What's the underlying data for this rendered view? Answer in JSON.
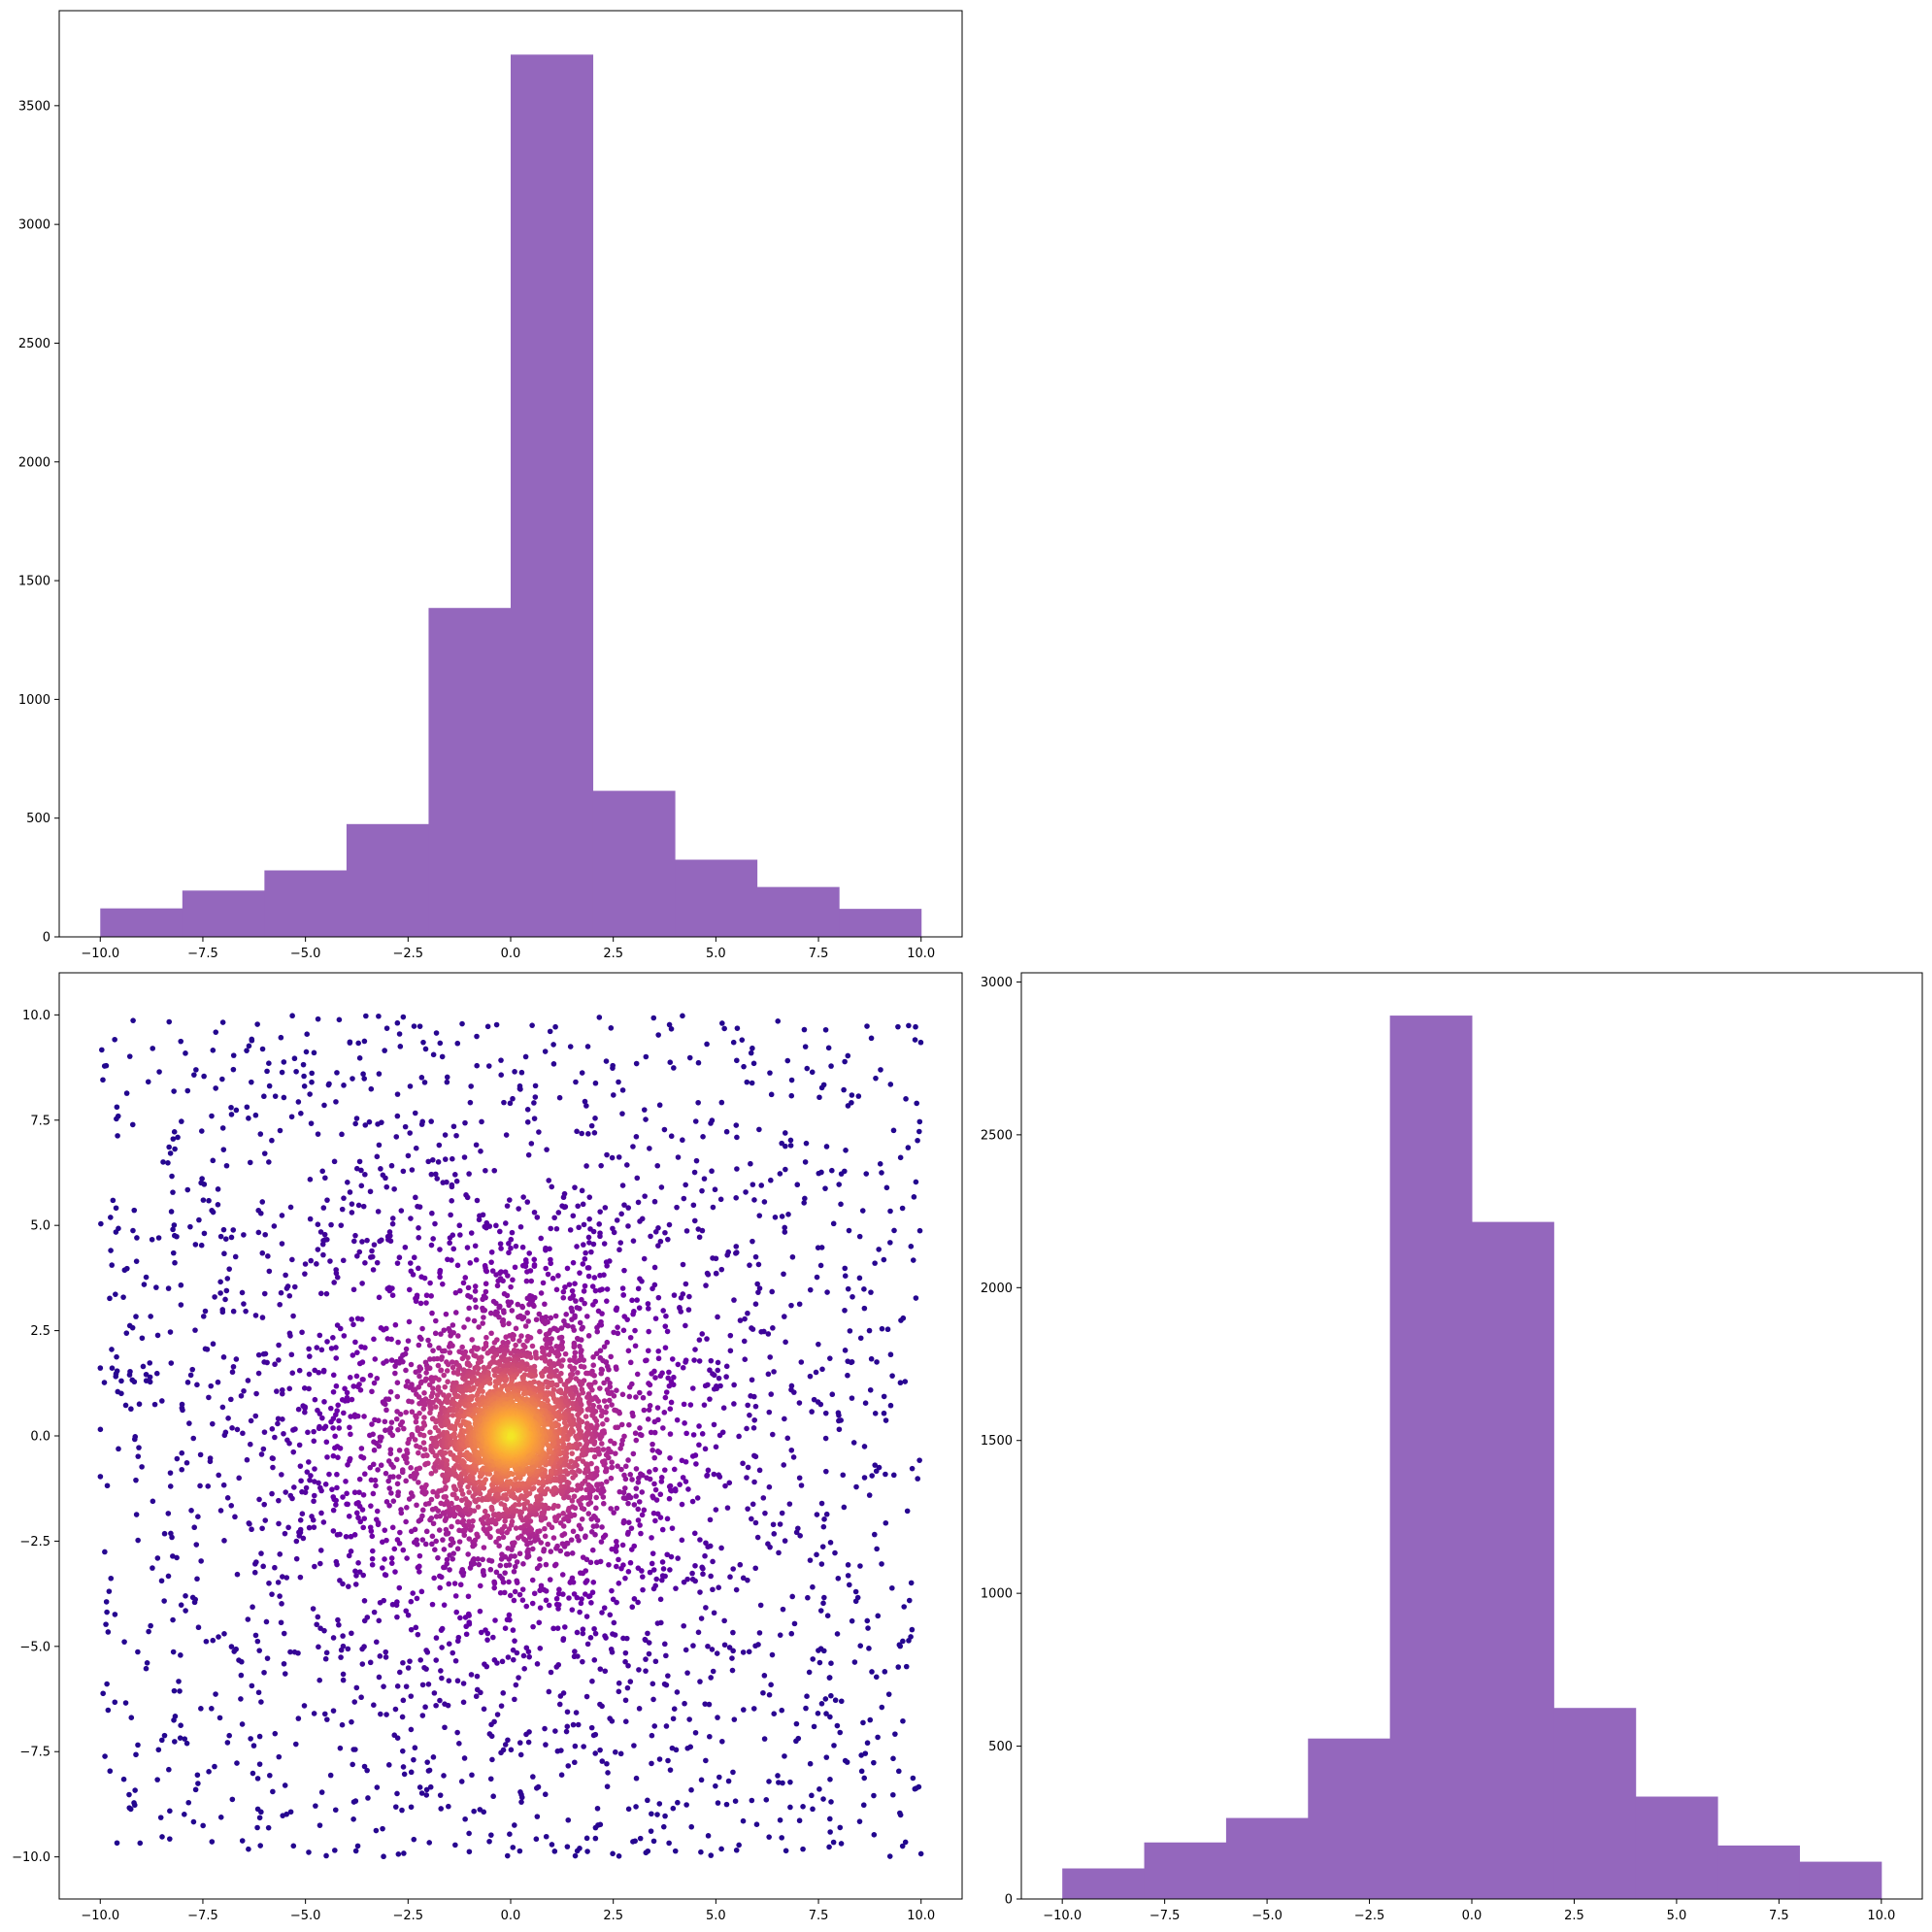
{
  "chart_data": [
    {
      "type": "bar",
      "panel": "top-left",
      "title": "",
      "xlabel": "",
      "ylabel": "",
      "bin_edges": [
        -10,
        -8,
        -6,
        -4,
        -2,
        0,
        2,
        4,
        6,
        8,
        10
      ],
      "values": [
        120,
        195,
        280,
        475,
        1385,
        3715,
        615,
        325,
        210,
        118
      ],
      "color": "#9467bd",
      "xlim": [
        -11,
        11
      ],
      "ylim": [
        0,
        3900
      ],
      "xticks": [
        -10,
        -7.5,
        -5,
        -2.5,
        0,
        2.5,
        5,
        7.5,
        10
      ],
      "xtick_labels": [
        "−10.0",
        "−7.5",
        "−5.0",
        "−2.5",
        "0.0",
        "2.5",
        "5.0",
        "7.5",
        "10.0"
      ],
      "yticks": [
        0,
        500,
        1000,
        1500,
        2000,
        2500,
        3000,
        3500
      ],
      "ytick_labels": [
        "0",
        "500",
        "1000",
        "1500",
        "2000",
        "2500",
        "3000",
        "3500"
      ]
    },
    {
      "type": "scatter",
      "panel": "bottom-left",
      "title": "",
      "xlabel": "",
      "ylabel": "",
      "description": "density-colored scatter (plasma colormap), dense yellow core near (0,0)",
      "n_points": 10000,
      "xlim": [
        -11,
        11
      ],
      "ylim": [
        -11,
        11
      ],
      "colormap": [
        "#0d0887",
        "#6a00a8",
        "#b12a90",
        "#e16462",
        "#fca636",
        "#f0f921"
      ],
      "xticks": [
        -10,
        -7.5,
        -5,
        -2.5,
        0,
        2.5,
        5,
        7.5,
        10
      ],
      "xtick_labels": [
        "−10.0",
        "−7.5",
        "−5.0",
        "−2.5",
        "0.0",
        "2.5",
        "5.0",
        "7.5",
        "10.0"
      ],
      "yticks": [
        -10,
        -7.5,
        -5,
        -2.5,
        0,
        2.5,
        5,
        7.5,
        10
      ],
      "ytick_labels": [
        "−10.0",
        "−7.5",
        "−5.0",
        "−2.5",
        "0.0",
        "2.5",
        "5.0",
        "7.5",
        "10.0"
      ]
    },
    {
      "type": "bar",
      "panel": "bottom-right",
      "title": "",
      "xlabel": "",
      "ylabel": "",
      "bin_edges": [
        -10,
        -8,
        -6,
        -4,
        -2,
        0,
        2,
        4,
        6,
        8,
        10
      ],
      "values": [
        100,
        185,
        265,
        525,
        2890,
        2215,
        625,
        335,
        175,
        122
      ],
      "color": "#9467bd",
      "xlim": [
        -11,
        11
      ],
      "ylim": [
        0,
        3030
      ],
      "xticks": [
        -10,
        -7.5,
        -5,
        -2.5,
        0,
        2.5,
        5,
        7.5,
        10
      ],
      "xtick_labels": [
        "−10.0",
        "−7.5",
        "−5.0",
        "−2.5",
        "0.0",
        "2.5",
        "5.0",
        "7.5",
        "10.0"
      ],
      "yticks": [
        0,
        500,
        1000,
        1500,
        2000,
        2500,
        3000
      ],
      "ytick_labels": [
        "0",
        "500",
        "1000",
        "1500",
        "2000",
        "2500",
        "3000"
      ]
    }
  ]
}
